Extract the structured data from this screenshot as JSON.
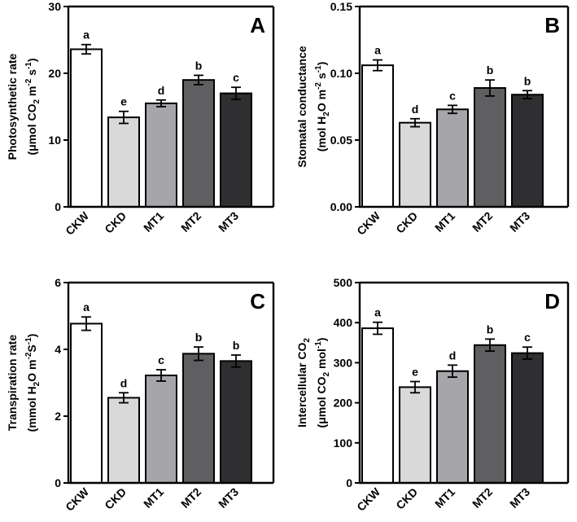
{
  "chart_data": [
    {
      "type": "bar",
      "panel": "A",
      "categories": [
        "CKW",
        "CKD",
        "MT1",
        "MT2",
        "MT3"
      ],
      "values": [
        23.6,
        13.4,
        15.5,
        19.0,
        17.0
      ],
      "errors": [
        0.7,
        0.9,
        0.5,
        0.7,
        0.9
      ],
      "significance": [
        "a",
        "e",
        "d",
        "b",
        "c"
      ],
      "ylabel_line1": "Photosynthetic rate",
      "ylabel_line2": {
        "pre": "(μmol CO",
        "sub1": "2",
        "mid1": " m",
        "sup1": "-2",
        "mid2": " s",
        "sup2": "-1",
        "post": ")"
      },
      "ylim": [
        0,
        30
      ],
      "yticks": [
        0,
        10,
        20,
        30
      ],
      "ytick_labels": [
        "0",
        "10",
        "20",
        "30"
      ]
    },
    {
      "type": "bar",
      "panel": "B",
      "categories": [
        "CKW",
        "CKD",
        "MT1",
        "MT2",
        "MT3"
      ],
      "values": [
        0.106,
        0.063,
        0.073,
        0.089,
        0.084
      ],
      "errors": [
        0.004,
        0.003,
        0.003,
        0.006,
        0.003
      ],
      "significance": [
        "a",
        "d",
        "c",
        "b",
        "b"
      ],
      "ylabel_line1": "Stomatal conductance",
      "ylabel_line2": {
        "pre": "(mol H",
        "sub1": "2",
        "mid1": "O m",
        "sup1": "-2",
        "mid2": " s",
        "sup2": "-1",
        "post": ")"
      },
      "ylim": [
        0,
        0.15
      ],
      "yticks": [
        0,
        0.05,
        0.1,
        0.15
      ],
      "ytick_labels": [
        "0.00",
        "0.05",
        "0.10",
        "0.15"
      ]
    },
    {
      "type": "bar",
      "panel": "C",
      "categories": [
        "CKW",
        "CKD",
        "MT1",
        "MT2",
        "MT3"
      ],
      "values": [
        4.77,
        2.55,
        3.22,
        3.87,
        3.65
      ],
      "errors": [
        0.2,
        0.15,
        0.17,
        0.2,
        0.18
      ],
      "significance": [
        "a",
        "d",
        "c",
        "b",
        "b"
      ],
      "ylabel_line1": "Transpiration rate",
      "ylabel_line2": {
        "pre": "(mmol H",
        "sub1": "2",
        "mid1": "O m",
        "sup1": "-2",
        "mid2": "S",
        "sup2": "-1",
        "post": ")"
      },
      "ylim": [
        0,
        6
      ],
      "yticks": [
        0,
        2,
        4,
        6
      ],
      "ytick_labels": [
        "0",
        "2",
        "4",
        "6"
      ]
    },
    {
      "type": "bar",
      "panel": "D",
      "categories": [
        "CKW",
        "CKD",
        "MT1",
        "MT2",
        "MT3"
      ],
      "values": [
        386,
        239,
        279,
        344,
        324
      ],
      "errors": [
        15,
        14,
        15,
        15,
        15
      ],
      "significance": [
        "a",
        "e",
        "d",
        "b",
        "c"
      ],
      "ylabel_line1": {
        "pre": "Intercellular CO",
        "sub": "2"
      },
      "ylabel_line2": {
        "pre": "(μmol CO",
        "sub1": "2",
        "mid1": " mol",
        "sup1": "-1",
        "post": ")"
      },
      "ylim": [
        0,
        500
      ],
      "yticks": [
        0,
        100,
        200,
        300,
        400,
        500
      ],
      "ytick_labels": [
        "0",
        "100",
        "200",
        "300",
        "400",
        "500"
      ]
    }
  ],
  "bar_colors": [
    "#ffffff",
    "#d9d9d9",
    "#a5a5aa",
    "#5f5f61",
    "#2f2f31"
  ]
}
